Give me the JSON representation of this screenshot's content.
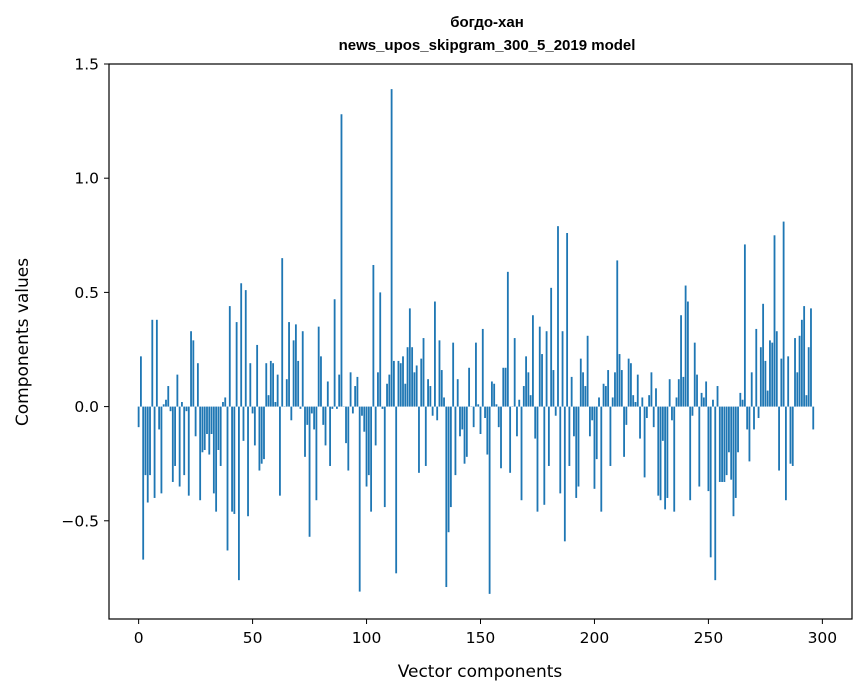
{
  "chart_data": {
    "type": "bar",
    "title": "богдо-хан",
    "subtitle": "news_upos_skipgram_300_5_2019 model",
    "xlabel": "Vector components",
    "ylabel": "Components values",
    "xlim": [
      -13,
      313
    ],
    "ylim": [
      -0.93,
      1.5
    ],
    "xticks": [
      0,
      50,
      100,
      150,
      200,
      250,
      300
    ],
    "xtick_labels": [
      "0",
      "50",
      "100",
      "150",
      "200",
      "250",
      "300"
    ],
    "yticks": [
      -0.5,
      0.0,
      0.5,
      1.0,
      1.5
    ],
    "ytick_labels": [
      "−0.5",
      "0.0",
      "0.5",
      "1.0",
      "1.5"
    ],
    "grid": false,
    "bar_color": "#1f77b4",
    "values": [
      -0.09,
      0.22,
      -0.67,
      -0.3,
      -0.42,
      -0.3,
      0.38,
      -0.4,
      0.38,
      -0.1,
      -0.38,
      0.01,
      0.03,
      0.09,
      -0.02,
      -0.33,
      -0.26,
      0.14,
      -0.35,
      0.02,
      -0.3,
      -0.02,
      -0.39,
      0.33,
      0.29,
      -0.13,
      0.19,
      -0.41,
      -0.2,
      -0.19,
      -0.12,
      -0.21,
      -0.12,
      -0.38,
      -0.46,
      -0.19,
      -0.26,
      0.02,
      0.04,
      -0.63,
      0.44,
      -0.46,
      -0.47,
      0.37,
      -0.76,
      0.54,
      -0.15,
      0.51,
      -0.48,
      0.19,
      -0.03,
      -0.17,
      0.27,
      -0.28,
      -0.25,
      -0.23,
      0.19,
      0.05,
      0.2,
      0.19,
      0.02,
      0.14,
      -0.39,
      0.65,
      0.0,
      0.12,
      0.37,
      -0.06,
      0.29,
      0.36,
      0.2,
      -0.01,
      0.33,
      -0.22,
      -0.08,
      -0.57,
      -0.03,
      -0.1,
      -0.41,
      0.35,
      0.22,
      -0.08,
      -0.17,
      0.11,
      -0.26,
      -0.01,
      0.47,
      -0.01,
      0.14,
      1.28,
      0.0,
      -0.16,
      -0.28,
      0.15,
      -0.03,
      0.09,
      0.13,
      -0.81,
      -0.04,
      -0.11,
      -0.35,
      -0.3,
      -0.46,
      0.62,
      -0.17,
      0.15,
      0.5,
      -0.01,
      -0.44,
      0.1,
      0.14,
      1.39,
      0.2,
      -0.73,
      0.2,
      0.19,
      0.22,
      0.1,
      0.26,
      0.43,
      0.26,
      0.15,
      0.18,
      -0.29,
      0.21,
      0.3,
      -0.26,
      0.12,
      0.09,
      -0.04,
      0.46,
      -0.06,
      0.29,
      0.16,
      0.04,
      -0.79,
      -0.55,
      -0.44,
      0.28,
      -0.3,
      0.12,
      -0.13,
      -0.1,
      -0.25,
      -0.22,
      0.17,
      0.0,
      -0.09,
      0.28,
      0.01,
      -0.12,
      0.34,
      -0.05,
      -0.21,
      -0.82,
      0.11,
      0.1,
      0.01,
      -0.09,
      -0.27,
      0.17,
      0.17,
      0.59,
      -0.29,
      0.0,
      0.3,
      -0.13,
      0.03,
      -0.41,
      0.09,
      0.22,
      0.15,
      0.05,
      0.4,
      -0.14,
      -0.46,
      0.35,
      0.23,
      -0.43,
      0.33,
      -0.26,
      0.52,
      0.16,
      -0.04,
      0.79,
      -0.38,
      0.33,
      -0.59,
      0.76,
      -0.26,
      0.13,
      -0.13,
      -0.4,
      -0.35,
      0.21,
      0.15,
      0.09,
      0.31,
      -0.13,
      -0.06,
      -0.36,
      -0.23,
      0.04,
      -0.46,
      0.1,
      0.09,
      0.16,
      -0.26,
      0.04,
      0.15,
      0.64,
      0.23,
      0.16,
      -0.22,
      -0.08,
      0.21,
      0.19,
      0.05,
      0.02,
      0.14,
      -0.14,
      0.04,
      -0.31,
      -0.05,
      0.05,
      0.15,
      -0.09,
      0.08,
      -0.39,
      -0.41,
      -0.15,
      -0.45,
      -0.4,
      0.12,
      -0.06,
      -0.46,
      0.04,
      0.12,
      0.4,
      0.13,
      0.53,
      0.46,
      -0.41,
      -0.04,
      0.28,
      0.14,
      -0.35,
      0.06,
      0.04,
      0.11,
      -0.37,
      -0.66,
      0.03,
      -0.76,
      0.09,
      -0.33,
      -0.33,
      -0.33,
      -0.3,
      -0.2,
      -0.32,
      -0.48,
      -0.4,
      -0.2,
      0.06,
      0.03,
      0.71,
      -0.1,
      -0.24,
      0.15,
      -0.1,
      0.34,
      -0.05,
      0.26,
      0.45,
      0.2,
      0.07,
      0.29,
      0.28,
      0.75,
      0.33,
      -0.28,
      0.21,
      0.81,
      -0.41,
      0.22,
      -0.25,
      -0.26,
      0.3,
      0.15,
      0.31,
      0.38,
      0.44,
      0.05,
      0.26,
      0.43,
      -0.1
    ]
  }
}
